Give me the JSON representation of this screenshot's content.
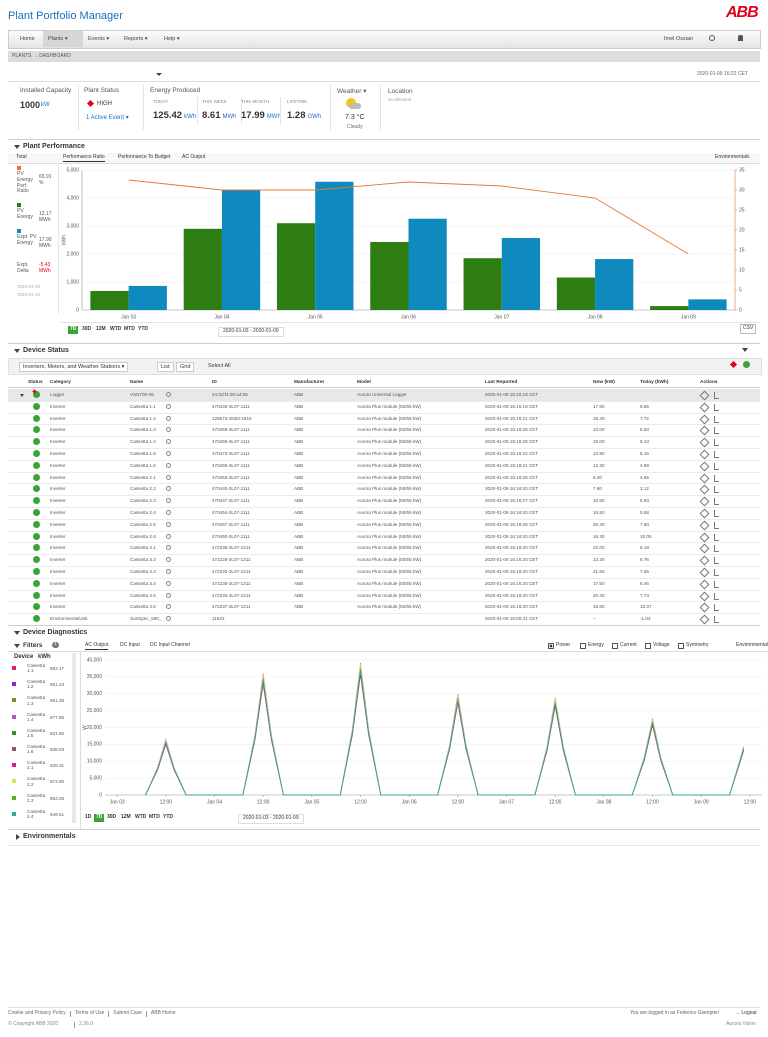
{
  "header": {
    "title": "Plant Portfolio Manager",
    "logo": "ABB"
  },
  "nav": {
    "items": [
      "Home",
      "Plants ▾",
      "Events ▾",
      "Reports ▾",
      "Help ▾"
    ],
    "user": "Imel Oszaio"
  },
  "breadcrumb": "PLANTS → DASHBOARD",
  "timestamp": "2020-01-09 16:22 CET",
  "summary": {
    "capacity": {
      "label": "Installed Capacity",
      "value": "1000",
      "unit": "kW"
    },
    "status": {
      "label": "Plant Status",
      "level": "HIGH",
      "events": "1 Active Event ▾"
    },
    "energy": {
      "label": "Energy Produced",
      "items": [
        {
          "label": "TODAY",
          "value": "125.42",
          "unit": "kWh"
        },
        {
          "label": "THIS WEEK",
          "value": "8.61",
          "unit": "MWh"
        },
        {
          "label": "THIS MONTH",
          "value": "17.99",
          "unit": "MWh"
        },
        {
          "label": "LIFETIME",
          "value": "1.28",
          "unit": "GWh"
        }
      ]
    },
    "weather": {
      "label": "Weather ▾",
      "temp": "7.3 °C",
      "condition": "Cloudy"
    },
    "location": {
      "label": "Location",
      "value": "no direction"
    }
  },
  "plant_performance": {
    "title": "Plant Performance",
    "total": "Total",
    "tabs": [
      "Performance Ratio",
      "Performance To Budget",
      "AC Output"
    ],
    "right_tab": "Environmentals",
    "ranges": [
      "7D",
      "30D",
      "12M",
      "WTD",
      "MTD",
      "YTD"
    ],
    "date_range": "2020-01-03 - 2020-01-09",
    "csv": "CSV"
  },
  "device_status": {
    "title": "Device Status",
    "filter": "Inverters, Meters, and Weather Stations ▾",
    "views": [
      "List",
      "Grid"
    ],
    "select_all": "Select All",
    "columns": [
      "Status",
      "Category",
      "Name",
      "ID",
      "Manufacturer",
      "Model",
      "Last Reported",
      "Now (kW)",
      "Today (kWh)",
      "Actions"
    ],
    "rows": [
      {
        "category": "Logger",
        "name": "VSN700-05",
        "id": "24:0d:f4:00:a4:05",
        "manufacturer": "ABB",
        "model": "Aurora Universal Logger",
        "last": "2020-01-09 16:16:19 CET"
      },
      {
        "category": "Inverter",
        "name": "Cassetta 1.1",
        "id": "470449-3L07-1111",
        "manufacturer": "ABB",
        "model": "Aurora Plus module (50/55 kW)",
        "last": "2020-01-09 16:16:19 CET",
        "now": "17.60",
        "today": "6.86"
      },
      {
        "category": "Inverter",
        "name": "Cassetta 1.2",
        "id": "126573-3N03-1816",
        "manufacturer": "ABB",
        "model": "Aurora Plus module (50/55 kW)",
        "last": "2020-01-09 16:16:21 CET",
        "now": "15.40",
        "today": "7.72"
      },
      {
        "category": "Inverter",
        "name": "Cassetta 1.3",
        "id": "470458-3L07-1111",
        "manufacturer": "ABB",
        "model": "Aurora Plus module (50/55 kW)",
        "last": "2020-01-09 16:16:25 CET",
        "now": "10.00",
        "today": "5.50"
      },
      {
        "category": "Inverter",
        "name": "Cassetta 1.4",
        "id": "470456-3L07-1111",
        "manufacturer": "ABB",
        "model": "Aurora Plus module (50/55 kW)",
        "last": "2020-01-09 16:16:26 CET",
        "now": "15.00",
        "today": "6.13"
      },
      {
        "category": "Inverter",
        "name": "Cassetta 1.5",
        "id": "470473-3L07-1111",
        "manufacturer": "ABB",
        "model": "Aurora Plus module (50/55 kW)",
        "last": "2020-01-09 16:16:22 CET",
        "now": "12.90",
        "today": "5.16"
      },
      {
        "category": "Inverter",
        "name": "Cassetta 1.6",
        "id": "470455-3L07-1111",
        "manufacturer": "ABB",
        "model": "Aurora Plus module (50/55 kW)",
        "last": "2020-01-09 16:16:21 CET",
        "now": "12.30",
        "today": "4.69"
      },
      {
        "category": "Inverter",
        "name": "Cassetta 2.1",
        "id": "470453-3L07-1111",
        "manufacturer": "ABB",
        "model": "Aurora Plus module (50/55 kW)",
        "last": "2020-01-09 16:16:25 CET",
        "now": "6.20",
        "today": "4.66"
      },
      {
        "category": "Inverter",
        "name": "Cassetta 2.2",
        "id": "470440-3L07-1111",
        "manufacturer": "ABB",
        "model": "Aurora Plus module (50/55 kW)",
        "last": "2020-01-09 16:16:20 CET",
        "now": "7.80",
        "today": "3.12"
      },
      {
        "category": "Inverter",
        "name": "Cassetta 2.3",
        "id": "470447-3L07-1111",
        "manufacturer": "ABB",
        "model": "Aurora Plus module (50/55 kW)",
        "last": "2020-01-09 16:16:27 CET",
        "now": "10.60",
        "today": "5.60"
      },
      {
        "category": "Inverter",
        "name": "Cassetta 2.4",
        "id": "470454-3L07-1111",
        "manufacturer": "ABB",
        "model": "Aurora Plus module (50/55 kW)",
        "last": "2020-01-09 16:16:20 CET",
        "now": "16.50",
        "today": "5.58"
      },
      {
        "category": "Inverter",
        "name": "Cassetta 2.5",
        "id": "470457-3L07-1111",
        "manufacturer": "ABB",
        "model": "Aurora Plus module (50/55 kW)",
        "last": "2020-01-09 16:16:26 CET",
        "now": "20.40",
        "today": "7.60"
      },
      {
        "category": "Inverter",
        "name": "Cassetta 2.6",
        "id": "470450-3L07-1111",
        "manufacturer": "ABB",
        "model": "Aurora Plus module (50/55 kW)",
        "last": "2020-01-09 16:16:20 CET",
        "now": "16.30",
        "today": "10.05"
      },
      {
        "category": "Inverter",
        "name": "Cassetta 3.1",
        "id": "472236-3L07-1211",
        "manufacturer": "ABB",
        "model": "Aurora Plus module (50/55 kW)",
        "last": "2020-01-09 16:16:20 CET",
        "now": "22.00",
        "today": "6.19"
      },
      {
        "category": "Inverter",
        "name": "Cassetta 3.2",
        "id": "472228-3L07-1211",
        "manufacturer": "ABB",
        "model": "Aurora Plus module (50/55 kW)",
        "last": "2020-01-09 16:16:20 CET",
        "now": "13.30",
        "today": "6.76"
      },
      {
        "category": "Inverter",
        "name": "Cassetta 3.3",
        "id": "472233-3L07-1211",
        "manufacturer": "ABB",
        "model": "Aurora Plus module (50/55 kW)",
        "last": "2020-01-09 16:16:20 CET",
        "now": "21.50",
        "today": "7.66"
      },
      {
        "category": "Inverter",
        "name": "Cassetta 3.4",
        "id": "472235-3L07-1211",
        "manufacturer": "ABB",
        "model": "Aurora Plus module (50/55 kW)",
        "last": "2020-01-09 16:16:20 CET",
        "now": "17.50",
        "today": "6.46"
      },
      {
        "category": "Inverter",
        "name": "Cassetta 3.5",
        "id": "472234-3L07-1211",
        "manufacturer": "ABB",
        "model": "Aurora Plus module (50/55 kW)",
        "last": "2020-01-09 16:16:20 CET",
        "now": "20.40",
        "today": "7.74"
      },
      {
        "category": "Inverter",
        "name": "Cassetta 3.6",
        "id": "472237-3L07-1211",
        "manufacturer": "ABB",
        "model": "Aurora Plus module (50/55 kW)",
        "last": "2020-01-09 16:16:20 CET",
        "now": "19.60",
        "today": "10.37"
      },
      {
        "category": "EnvironmentalUnit",
        "name": "SunSpec_560_",
        "id": "11623",
        "last": "2020-01-09 16:00:41 CET",
        "now": "--",
        "today": "-1.03"
      }
    ]
  },
  "device_diagnostics": {
    "title": "Device Diagnostics",
    "filters": "Filters",
    "filter_count": "1",
    "tabs": [
      "AC Output",
      "DC Input",
      "DC Input Channel"
    ],
    "checks": [
      "Power",
      "Energy",
      "Current",
      "Voltage",
      "Symmetry"
    ],
    "right_tab": "Environmentals",
    "legend_header": [
      "Device",
      "kWh"
    ],
    "ranges": [
      "1D",
      "7D",
      "30D",
      "12M",
      "WTD",
      "MTD",
      "YTD"
    ],
    "date_range": "2020-01-03 - 2020-01-09"
  },
  "environmentals": "Environmentals",
  "footer": {
    "links": [
      "Cookie and Privacy Policy",
      "Terms of Use",
      "Submit Case",
      "ABB Home"
    ],
    "copyright": "© Copyright ABB 2020",
    "version": "2.36.0",
    "login": "You are logged in as Federico Giampieri",
    "logout": "→ Logout",
    "brand": "Aurora Vision"
  },
  "chart_data": [
    {
      "type": "bar",
      "categories": [
        "Jan 03",
        "Jan 04",
        "Jan 05",
        "Jan 06",
        "Jan 07",
        "Jan 08",
        "Jan 09"
      ],
      "ylabel": "kWh",
      "y2label": "%",
      "ylim": [
        0,
        5000
      ],
      "yticks": [
        0,
        {
          "value": 1000,
          "label": "1,000"
        },
        {
          "value": 2000,
          "label": "2,000"
        },
        {
          "value": 3000,
          "label": "3,000"
        },
        {
          "value": 4000,
          "label": "4,000"
        },
        {
          "value": 5000,
          "label": "5,000"
        }
      ],
      "y2lim": [
        0,
        35
      ],
      "y2ticks": [
        0,
        5,
        10,
        15,
        20,
        25,
        30,
        35
      ],
      "grid": true,
      "series": [
        {
          "name": "PV Energy Perf. Ratio",
          "color": "#e8772e",
          "type": "line",
          "axis": "y2",
          "total": "65.91 %",
          "values": [
            32.5,
            30,
            30,
            32,
            31,
            28,
            14
          ]
        },
        {
          "name": "PV Energy",
          "color": "#2e7d12",
          "total": "12.17 MWh",
          "values": [
            680,
            2900,
            3100,
            2430,
            1850,
            1160,
            140
          ]
        },
        {
          "name": "Expt. PV Energy",
          "color": "#0e8abf",
          "total": "17.90 MWh",
          "values": [
            860,
            4300,
            4580,
            3260,
            2570,
            1820,
            380
          ]
        }
      ],
      "delta": {
        "label": "Expt. Delta",
        "value": "-5.43 MWh"
      },
      "period": [
        "2020-01-03",
        "2020-01-10"
      ]
    },
    {
      "type": "line",
      "ylabel": "W",
      "xlim": [
        -3,
        159
      ],
      "xticks": [
        {
          "value": 0,
          "label": "Jan 03"
        },
        {
          "value": 12,
          "label": "12:00"
        },
        {
          "value": 24,
          "label": "Jan 04"
        },
        {
          "value": 36,
          "label": "12:00"
        },
        {
          "value": 48,
          "label": "Jan 05"
        },
        {
          "value": 60,
          "label": "12:00"
        },
        {
          "value": 72,
          "label": "Jan 06"
        },
        {
          "value": 84,
          "label": "12:00"
        },
        {
          "value": 96,
          "label": "Jan 07"
        },
        {
          "value": 108,
          "label": "12:00"
        },
        {
          "value": 120,
          "label": "Jan 08"
        },
        {
          "value": 132,
          "label": "12:00"
        },
        {
          "value": 144,
          "label": "Jan 09"
        },
        {
          "value": 156,
          "label": "12:00"
        }
      ],
      "ylim": [
        0,
        40000
      ],
      "yticks": [
        0,
        {
          "value": 5000,
          "label": "5,000"
        },
        {
          "value": 10000,
          "label": "10,000"
        },
        {
          "value": 15000,
          "label": "15,000"
        },
        {
          "value": 20000,
          "label": "20,000"
        },
        {
          "value": 25000,
          "label": "25,000"
        },
        {
          "value": 30000,
          "label": "30,000"
        },
        {
          "value": 35000,
          "label": "35,000"
        },
        {
          "value": 40000,
          "label": "40,000"
        }
      ],
      "grid": true,
      "x": [
        7,
        10,
        12,
        14,
        17,
        31,
        34,
        36,
        38,
        41,
        55,
        58,
        60,
        62,
        65,
        79,
        82,
        84,
        86,
        89,
        103,
        106,
        108,
        110,
        113,
        127,
        130,
        132,
        134,
        137,
        151,
        153,
        154.5
      ],
      "series": [
        {
          "name": "Cassetta 1.1",
          "kwh": "663.17",
          "color": "#e0197a",
          "values": [
            0,
            8000,
            16000,
            8000,
            0,
            0,
            17500,
            35000,
            17500,
            0,
            0,
            19000,
            38000,
            19000,
            0,
            0,
            14500,
            29000,
            14500,
            0,
            0,
            14000,
            28000,
            14000,
            0,
            0,
            11000,
            22000,
            11000,
            0,
            0,
            8000,
            14000
          ]
        },
        {
          "name": "Cassetta 1.2",
          "kwh": "651.23",
          "color": "#9b1fd0",
          "values": [
            0,
            7750,
            15500,
            7750,
            0,
            0,
            17000,
            34000,
            17000,
            0,
            0,
            18450,
            36900,
            18450,
            0,
            0,
            14050,
            28100,
            14050,
            0,
            0,
            13600,
            27200,
            13600,
            0,
            0,
            10650,
            21300,
            10650,
            0,
            0,
            7800,
            13600
          ]
        },
        {
          "name": "Cassetta 1.3",
          "kwh": "661.38",
          "color": "#8a8a1a",
          "values": [
            0,
            7900,
            15800,
            7900,
            0,
            0,
            17300,
            34600,
            17300,
            0,
            0,
            18800,
            37600,
            18800,
            0,
            0,
            14350,
            28700,
            14350,
            0,
            0,
            13850,
            27700,
            13850,
            0,
            0,
            10900,
            21800,
            10900,
            0,
            0,
            7900,
            13900
          ]
        },
        {
          "name": "Cassetta 1.4",
          "kwh": "677.86",
          "color": "#b04fd0",
          "values": [
            0,
            8250,
            16500,
            8250,
            0,
            0,
            18000,
            36000,
            18000,
            0,
            0,
            19550,
            39100,
            19550,
            0,
            0,
            14950,
            29900,
            14950,
            0,
            0,
            14400,
            28800,
            14400,
            0,
            0,
            11350,
            22700,
            11350,
            0,
            0,
            8200,
            14400
          ]
        },
        {
          "name": "Cassetta 1.5",
          "kwh": "631.60",
          "color": "#3a8a2a",
          "values": [
            0,
            7600,
            15200,
            7600,
            0,
            0,
            16600,
            33200,
            16600,
            0,
            0,
            18050,
            36100,
            18050,
            0,
            0,
            13800,
            27600,
            13800,
            0,
            0,
            13300,
            26600,
            13300,
            0,
            0,
            10450,
            20900,
            10450,
            0,
            0,
            7600,
            13300
          ]
        },
        {
          "name": "Cassetta 1.6",
          "kwh": "638.03",
          "color": "#8a5a5a",
          "values": [
            0,
            7700,
            15400,
            7700,
            0,
            0,
            16800,
            33600,
            16800,
            0,
            0,
            18250,
            36500,
            18250,
            0,
            0,
            13900,
            27800,
            13900,
            0,
            0,
            13450,
            26900,
            13450,
            0,
            0,
            10550,
            21100,
            10550,
            0,
            0,
            7700,
            13400
          ]
        },
        {
          "name": "Cassetta 2.1",
          "kwh": "629.31",
          "color": "#d61c8c",
          "values": [
            0,
            7500,
            15000,
            7500,
            0,
            0,
            16450,
            32900,
            16450,
            0,
            0,
            17850,
            35700,
            17850,
            0,
            0,
            13650,
            27300,
            13650,
            0,
            0,
            13150,
            26300,
            13150,
            0,
            0,
            10350,
            20700,
            10350,
            0,
            0,
            7500,
            13200
          ]
        },
        {
          "name": "Cassetta 2.2",
          "kwh": "673.90",
          "color": "#d8e060",
          "values": [
            0,
            8150,
            16300,
            8150,
            0,
            0,
            17850,
            35700,
            17850,
            0,
            0,
            19400,
            38800,
            19400,
            0,
            0,
            14800,
            29600,
            14800,
            0,
            0,
            14300,
            28600,
            14300,
            0,
            0,
            11200,
            22400,
            11200,
            0,
            0,
            8150,
            14300
          ]
        },
        {
          "name": "Cassetta 2.3",
          "kwh": "653.26",
          "color": "#5fa82a",
          "values": [
            0,
            7850,
            15700,
            7850,
            0,
            0,
            17150,
            34300,
            17150,
            0,
            0,
            18600,
            37200,
            18600,
            0,
            0,
            14200,
            28400,
            14200,
            0,
            0,
            13700,
            27400,
            13700,
            0,
            0,
            10800,
            21600,
            10800,
            0,
            0,
            7850,
            13700
          ]
        },
        {
          "name": "Cassetta 2.4",
          "kwh": "649.61",
          "color": "#20b0a0",
          "values": [
            0,
            7800,
            15600,
            7800,
            0,
            0,
            17050,
            34100,
            17050,
            0,
            0,
            18500,
            37000,
            18500,
            0,
            0,
            14150,
            28300,
            14150,
            0,
            0,
            13650,
            27300,
            13650,
            0,
            0,
            10700,
            21400,
            10700,
            0,
            0,
            7800,
            13600
          ]
        }
      ]
    }
  ]
}
